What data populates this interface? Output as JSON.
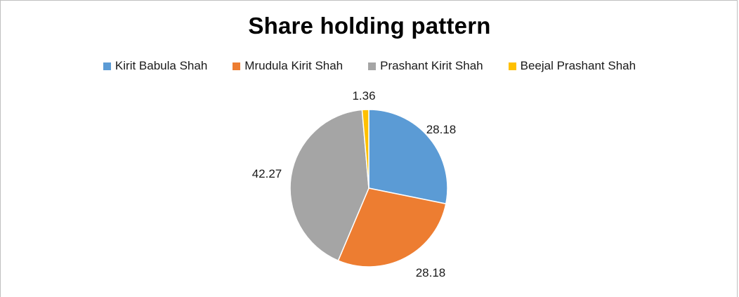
{
  "chart_data": {
    "type": "pie",
    "title": "Share holding pattern",
    "legend_position": "top",
    "categories": [
      "Kirit Babula Shah",
      "Mrudula Kirit Shah",
      "Prashant Kirit Shah",
      "Beejal Prashant Shah"
    ],
    "values": [
      28.18,
      28.18,
      42.27,
      1.36
    ],
    "data_labels": [
      "28.18",
      "28.18",
      "42.27",
      "1.36"
    ],
    "colors": [
      "#5b9bd5",
      "#ed7d31",
      "#a5a5a5",
      "#ffc000"
    ]
  }
}
